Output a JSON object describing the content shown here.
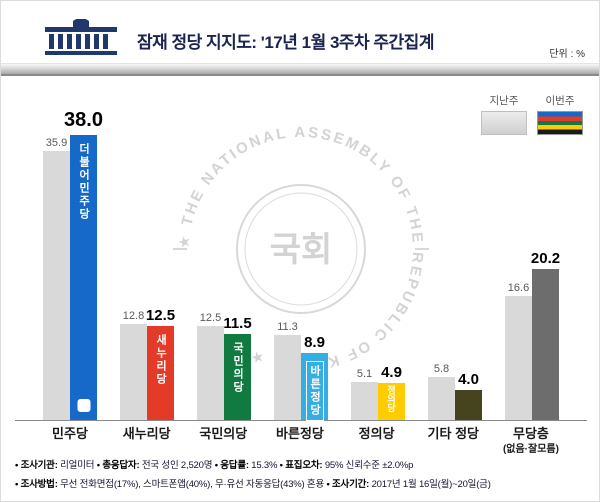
{
  "header": {
    "title": "잠재 정당 지지도: '17년 1월 3주차 주간집계",
    "unit": "단위 : %"
  },
  "legend": {
    "last_week": "지난주",
    "this_week": "이번주"
  },
  "watermark": {
    "ring_text": "★ THE NATIONAL ASSEMBLY OF THE REPUBLIC OF KOREA ★",
    "center_text": "국회"
  },
  "chart_data": {
    "type": "bar",
    "title": "잠재 정당 지지도: '17년 1월 3주차 주간집계",
    "unit": "%",
    "categories": [
      "민주당",
      "새누리당",
      "국민의당",
      "바른정당",
      "정의당",
      "기타 정당",
      "무당층"
    ],
    "category_note": "(없음·잘모름)",
    "series": [
      {
        "name": "지난주",
        "values": [
          35.9,
          12.8,
          12.5,
          11.3,
          5.1,
          5.8,
          16.6
        ]
      },
      {
        "name": "이번주",
        "values": [
          38.0,
          12.5,
          11.5,
          8.9,
          4.9,
          4.0,
          20.2
        ]
      }
    ],
    "bar_labels": [
      "더불어민주당",
      "새누리당",
      "국민의당",
      "바른정당",
      "정의당",
      "",
      ""
    ],
    "bar_colors": [
      "#1669c8",
      "#e43a28",
      "#107a41",
      "#35aee3",
      "#ffcc00",
      "#45441f",
      "#6d6d6d"
    ],
    "last_week_color": "#d9d9d9",
    "ylim": [
      0,
      40
    ],
    "legend_position": "top-right",
    "grid": false
  },
  "footer": {
    "line1": [
      {
        "label": "• 조사기관:",
        "text": " 리얼미터   "
      },
      {
        "label": "• 총응답자:",
        "text": " 전국 성인 2,520명   "
      },
      {
        "label": "• 응답률:",
        "text": " 15.3%   "
      },
      {
        "label": "• 표집오차:",
        "text": " 95% 신뢰수준 ±2.0%p"
      }
    ],
    "line2": [
      {
        "label": "• 조사방법:",
        "text": " 무선 전화면접(17%), 스마트폰앱(40%), 무·유선 자동응답(43%) 혼용   "
      },
      {
        "label": "• 조사기간:",
        "text": " 2017년 1월 16일(월)~20일(금)"
      }
    ]
  }
}
